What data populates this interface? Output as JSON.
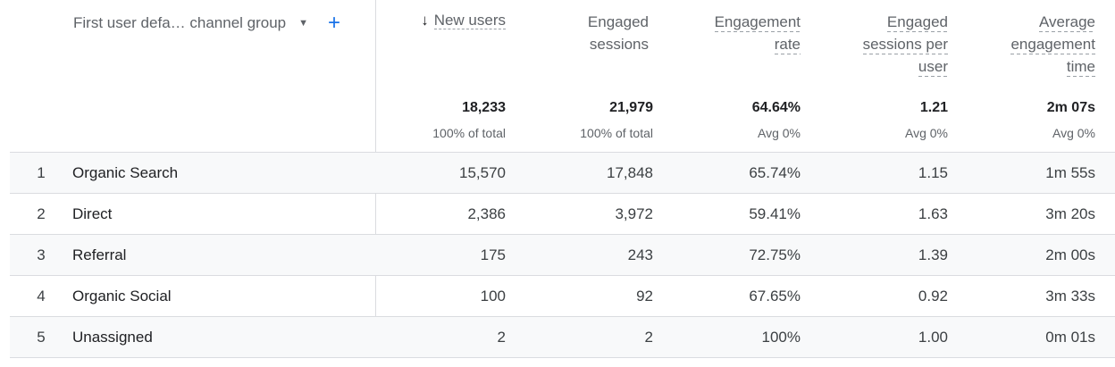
{
  "dimension_header": "First user defa… channel group",
  "columns": [
    {
      "label": "New users",
      "sorted": true
    },
    {
      "label": "Engaged sessions"
    },
    {
      "label": "Engagement rate"
    },
    {
      "label": "Engaged sessions per user"
    },
    {
      "label": "Average engagement time"
    }
  ],
  "totals": [
    {
      "value": "18,233",
      "sub": "100% of total"
    },
    {
      "value": "21,979",
      "sub": "100% of total"
    },
    {
      "value": "64.64%",
      "sub": "Avg 0%"
    },
    {
      "value": "1.21",
      "sub": "Avg 0%"
    },
    {
      "value": "2m 07s",
      "sub": "Avg 0%"
    }
  ],
  "rows": [
    {
      "rank": "1",
      "name": "Organic Search",
      "values": [
        "15,570",
        "17,848",
        "65.74%",
        "1.15",
        "1m 55s"
      ]
    },
    {
      "rank": "2",
      "name": "Direct",
      "values": [
        "2,386",
        "3,972",
        "59.41%",
        "1.63",
        "3m 20s"
      ]
    },
    {
      "rank": "3",
      "name": "Referral",
      "values": [
        "175",
        "243",
        "72.75%",
        "1.39",
        "2m 00s"
      ]
    },
    {
      "rank": "4",
      "name": "Organic Social",
      "values": [
        "100",
        "92",
        "67.65%",
        "0.92",
        "3m 33s"
      ]
    },
    {
      "rank": "5",
      "name": "Unassigned",
      "values": [
        "2",
        "2",
        "100%",
        "1.00",
        "0m 01s"
      ]
    }
  ],
  "colors": {
    "accent": "#1a73e8",
    "row_alt_bg": "#f8f9fa",
    "border": "#dadce0"
  }
}
